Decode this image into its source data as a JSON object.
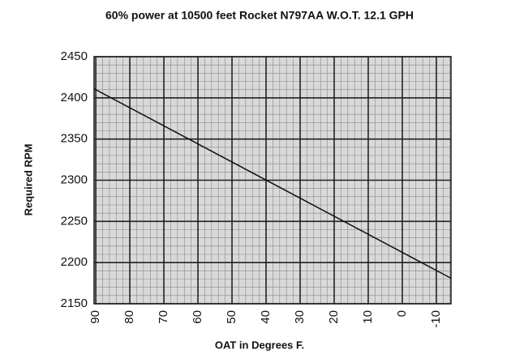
{
  "chart_data": {
    "type": "line",
    "title": "60% power at 10500 feet Rocket N797AA  W.O.T. 12.1 GPH",
    "x_label": "OAT in Degrees F.",
    "y_label": "Required RPM",
    "series": [
      {
        "x": [
          90.5,
          -14.3
        ],
        "values": [
          2411,
          2181
        ],
        "color": "#111111"
      }
    ],
    "xlim": [
      90.5,
      -14.3
    ],
    "xticks": [
      90,
      80,
      70,
      60,
      50,
      40,
      30,
      20,
      10,
      0,
      -10
    ],
    "ylim": [
      2150,
      2450
    ],
    "yticks": [
      2150,
      2200,
      2250,
      2300,
      2350,
      2400,
      2450
    ],
    "grid": true,
    "minor_divisions": 5,
    "background": "#d9d9d9"
  }
}
